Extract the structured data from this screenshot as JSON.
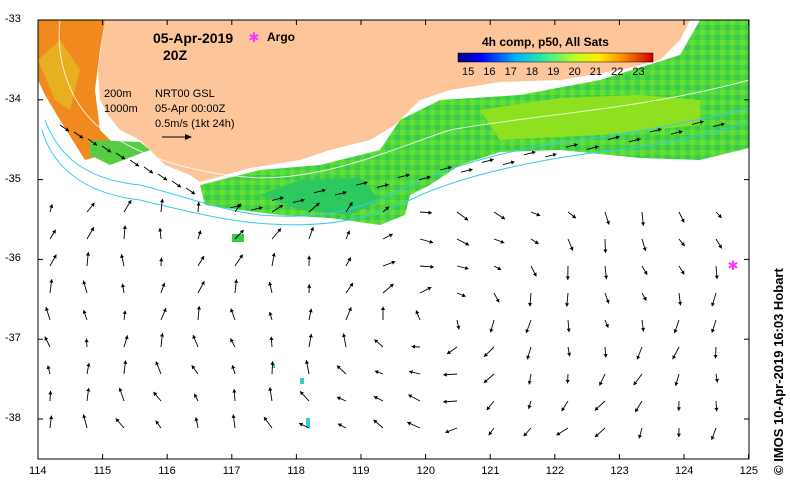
{
  "title": {
    "date": "05-Apr-2019",
    "time": "20Z"
  },
  "legend": {
    "argo_symbol": "✱",
    "argo_label": "Argo"
  },
  "info": {
    "contour_200": "200m",
    "contour_1000": "1000m",
    "product": "NRT00 GSL",
    "product_time": "05-Apr 00:00Z",
    "scale": "0.5m/s (1kt 24h)"
  },
  "colorbar": {
    "title": "4h comp, p50, All Sats",
    "ticks": [
      "15",
      "16",
      "17",
      "18",
      "19",
      "20",
      "21",
      "22",
      "23"
    ]
  },
  "axes": {
    "x_ticks": [
      "114",
      "115",
      "116",
      "117",
      "118",
      "119",
      "120",
      "121",
      "122",
      "123",
      "124",
      "125"
    ],
    "y_ticks": [
      "-33",
      "-34",
      "-35",
      "-36",
      "-37",
      "-38"
    ]
  },
  "credit": "© IMOS 10-Apr-2019 16:03 Hobart",
  "colors": {
    "land": "#fcc59a",
    "argo": "#ff33ff",
    "shelf": "#33ccee"
  }
}
